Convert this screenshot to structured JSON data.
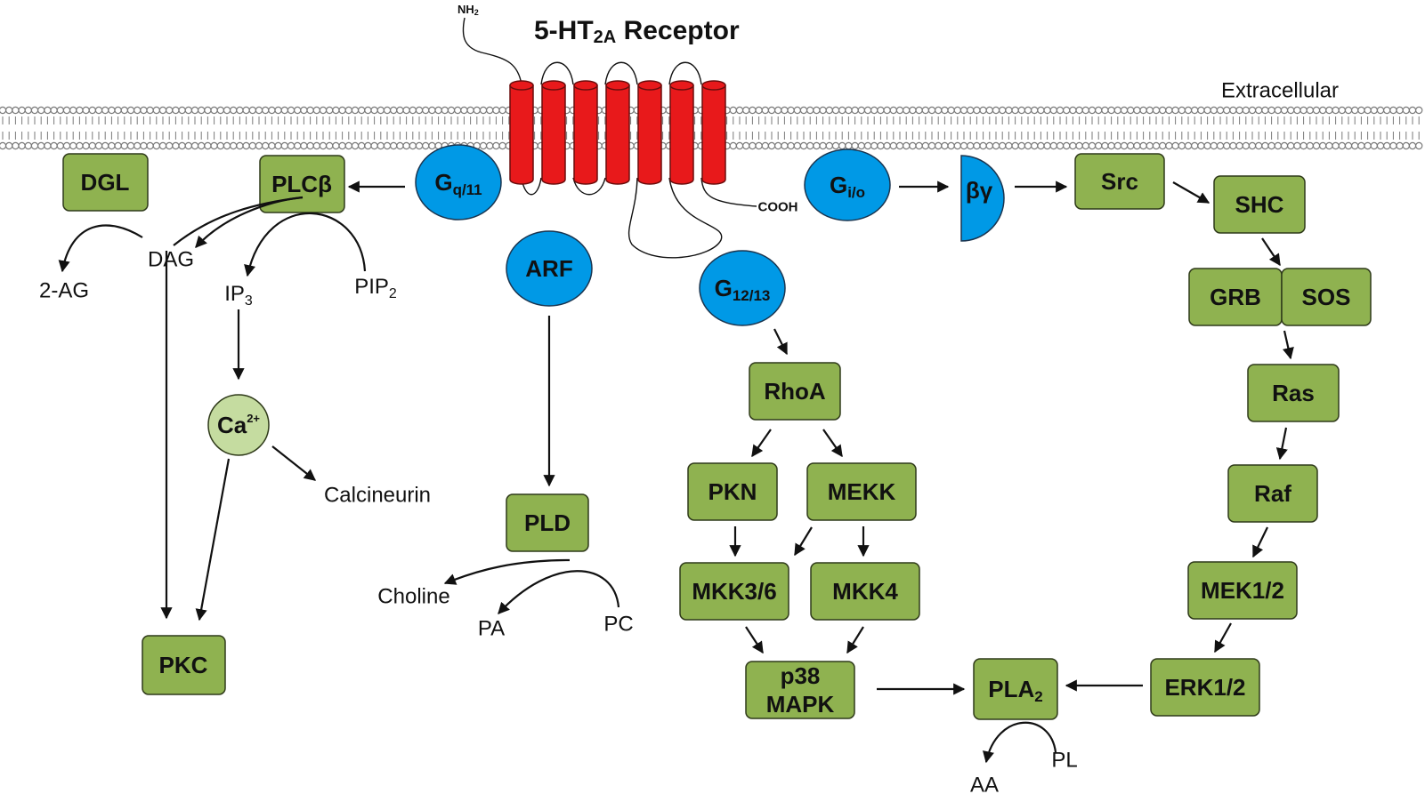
{
  "title": {
    "main": "5-HT",
    "sub": "2A",
    "rest": " Receptor"
  },
  "membrane_label": "Extracellular",
  "termini": {
    "n": "NH",
    "n_sub": "2",
    "c": "COOH"
  },
  "proteins": {
    "gq": {
      "main": "G",
      "sub": "q/11"
    },
    "gio": {
      "main": "G",
      "sub": "i/o"
    },
    "g1213": {
      "main": "G",
      "sub": "12/13"
    },
    "arf": "ARF",
    "betagamma": "βγ",
    "dgl": "DGL",
    "plcb": "PLCβ",
    "pkc": "PKC",
    "pld": "PLD",
    "rhoa": "RhoA",
    "pkn": "PKN",
    "mekk": "MEKK",
    "mkk36": "MKK3/6",
    "mkk4": "MKK4",
    "p38_line1": "p38",
    "p38_line2": "MAPK",
    "pla2": {
      "main": "PLA",
      "sub": "2"
    },
    "src": "Src",
    "shc": "SHC",
    "grb": "GRB",
    "sos": "SOS",
    "ras": "Ras",
    "raf": "Raf",
    "mek12": "MEK1/2",
    "erk12": "ERK1/2",
    "ca": {
      "main": "Ca",
      "sup": "2+"
    }
  },
  "labels": {
    "dag": "DAG",
    "twoag": "2-AG",
    "ip3": {
      "main": "IP",
      "sub": "3"
    },
    "pip2": {
      "main": "PIP",
      "sub": "2"
    },
    "calcineurin": "Calcineurin",
    "choline": "Choline",
    "pa": "PA",
    "pc": "PC",
    "pl": "PL",
    "aa": "AA"
  },
  "colors": {
    "protein_box": "#8fb250",
    "g_protein": "#0099e6",
    "receptor": "#e8191b",
    "calcium": "#c5dca0"
  }
}
